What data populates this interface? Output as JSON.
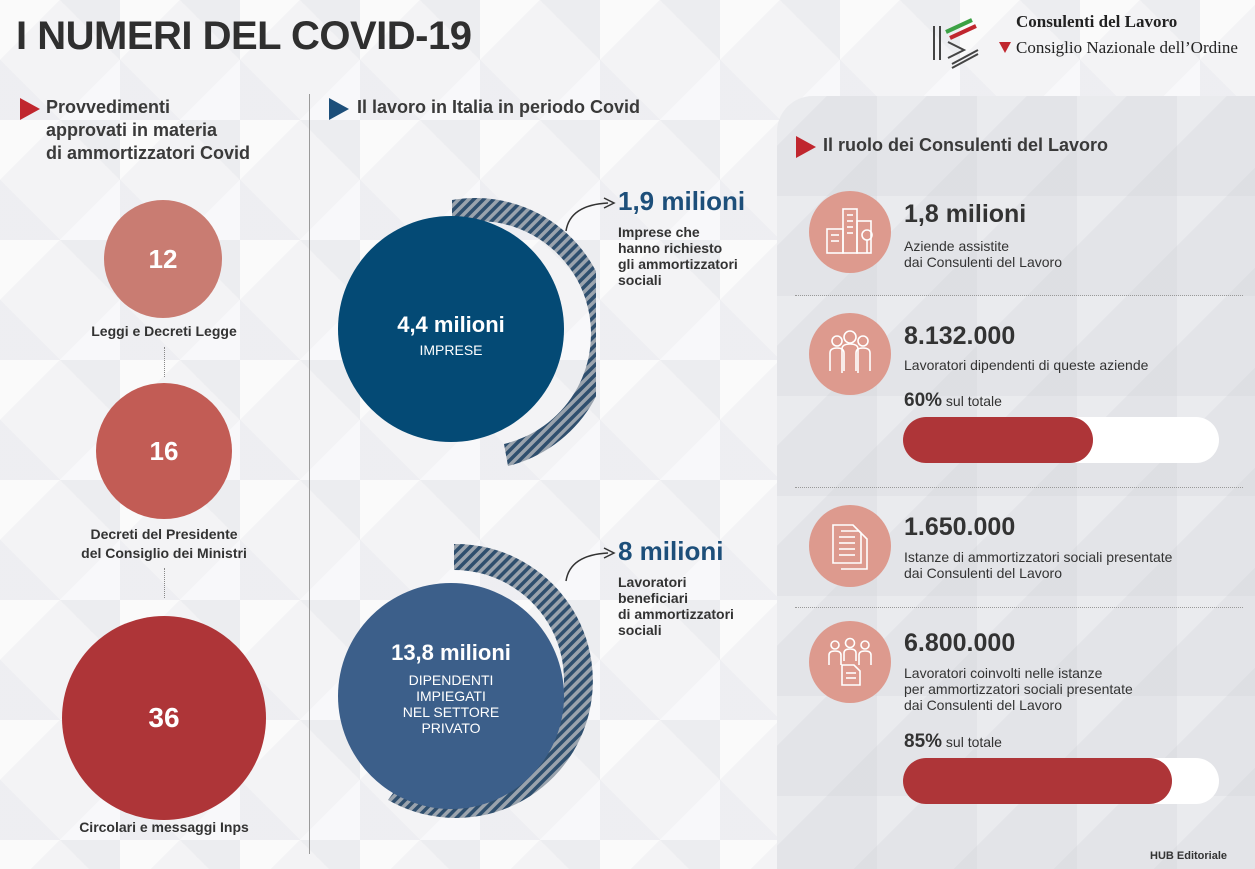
{
  "title": "I NUMERI DEL COVID-19",
  "logo": {
    "name": "Consulenti del Lavoro",
    "org": "Consiglio Nazionale dell’Ordine"
  },
  "left": {
    "heading_lines": [
      "Provvedimenti",
      "approvati in materia",
      "di ammortizzatori Covid"
    ],
    "items": [
      {
        "value": "12",
        "label": "Leggi e Decreti Legge"
      },
      {
        "value": "16",
        "label_lines": [
          "Decreti del Presidente",
          "del Consiglio dei Ministri"
        ]
      },
      {
        "value": "36",
        "label": "Circolari e messaggi Inps"
      }
    ]
  },
  "middle": {
    "heading": "Il lavoro in Italia in periodo Covid",
    "block1": {
      "center_value": "4,4 milioni",
      "center_label": "IMPRESE",
      "callout_value": "1,9 milioni",
      "callout_lines": [
        "Imprese che",
        "hanno richiesto",
        "gli ammortizzatori",
        "sociali"
      ]
    },
    "block2": {
      "center_value": "13,8 milioni",
      "center_lines": [
        "DIPENDENTI",
        "IMPIEGATI",
        "NEL SETTORE",
        "PRIVATO"
      ],
      "callout_value": "8 milioni",
      "callout_lines": [
        "Lavoratori",
        "beneficiari",
        "di ammortizzatori",
        "sociali"
      ]
    }
  },
  "right": {
    "heading": "Il ruolo dei Consulenti del Lavoro",
    "stats": [
      {
        "icon": "buildings-icon",
        "value": "1,8 milioni",
        "lines": [
          "Aziende assistite",
          "dai Consulenti del Lavoro"
        ]
      },
      {
        "icon": "people-icon",
        "value": "8.132.000",
        "lines": [
          "Lavoratori dipendenti di queste aziende"
        ],
        "percent_value": "60%",
        "percent_text": "sul totale",
        "percent": 60
      },
      {
        "icon": "documents-icon",
        "value": "1.650.000",
        "lines": [
          "Istanze di ammortizzatori sociali presentate",
          "dai Consulenti del Lavoro"
        ]
      },
      {
        "icon": "workers-document-icon",
        "value": "6.800.000",
        "lines": [
          "Lavoratori coinvolti nelle istanze",
          "per ammortizzatori sociali presentate",
          "dai Consulenti del Lavoro"
        ],
        "percent_value": "85%",
        "percent_text": "sul totale",
        "percent": 85
      }
    ]
  },
  "credit": "HUB Editoriale",
  "colors": {
    "navy": "#044a75",
    "steel_blue": "#3c5f8a",
    "red": "#ae3538",
    "salmon": "#c97c72",
    "icon_bg": "#dd9a8e",
    "callout_blue": "#1d4f7a"
  }
}
